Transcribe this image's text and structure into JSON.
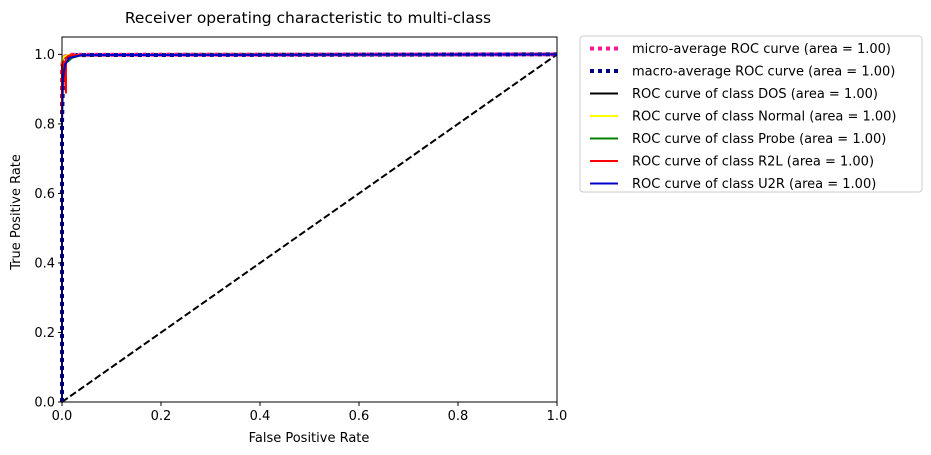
{
  "chart_data": {
    "type": "line",
    "title": "Receiver operating characteristic to multi-class",
    "xlabel": "False Positive Rate",
    "ylabel": "True Positive Rate",
    "xlim": [
      0.0,
      1.0
    ],
    "ylim": [
      0.0,
      1.05
    ],
    "xticks": [
      "0.0",
      "0.2",
      "0.4",
      "0.6",
      "0.8",
      "1.0"
    ],
    "yticks": [
      "0.0",
      "0.2",
      "0.4",
      "0.6",
      "0.8",
      "1.0"
    ],
    "xtick_values": [
      0.0,
      0.2,
      0.4,
      0.6,
      0.8,
      1.0
    ],
    "ytick_values": [
      0.0,
      0.2,
      0.4,
      0.6,
      0.8,
      1.0
    ],
    "legend_position": "outside-upper-right",
    "series": [
      {
        "name": "micro-average ROC curve (area = 1.00)",
        "color": "#ff1493",
        "style": "dotted",
        "x": [
          0.0,
          0.0,
          0.002,
          0.005,
          0.01,
          0.02,
          1.0
        ],
        "y": [
          0.0,
          0.96,
          0.985,
          0.993,
          0.997,
          0.999,
          1.0
        ]
      },
      {
        "name": "macro-average ROC curve (area = 1.00)",
        "color": "#000080",
        "style": "dotted",
        "x": [
          0.0,
          0.0,
          0.002,
          0.005,
          0.01,
          0.03,
          1.0
        ],
        "y": [
          0.0,
          0.8,
          0.93,
          0.97,
          0.99,
          0.998,
          1.0
        ]
      },
      {
        "name": "ROC curve of class DOS (area = 1.00)",
        "color": "#000000",
        "style": "solid",
        "x": [
          0.0,
          0.0,
          0.003,
          0.01,
          1.0
        ],
        "y": [
          0.0,
          0.97,
          0.99,
          0.998,
          1.0
        ]
      },
      {
        "name": "ROC curve of class Normal (area = 1.00)",
        "color": "#ffff00",
        "style": "solid",
        "x": [
          0.0,
          0.0,
          0.003,
          0.01,
          1.0
        ],
        "y": [
          0.0,
          0.98,
          0.992,
          0.998,
          1.0
        ]
      },
      {
        "name": "ROC curve of class Probe (area = 1.00)",
        "color": "#008000",
        "style": "solid",
        "x": [
          0.0,
          0.0,
          0.005,
          0.012,
          0.02,
          0.04,
          1.0
        ],
        "y": [
          0.0,
          0.95,
          0.975,
          0.98,
          0.99,
          0.998,
          1.0
        ]
      },
      {
        "name": "ROC curve of class R2L (area = 1.00)",
        "color": "#ff0000",
        "style": "solid",
        "x": [
          0.0,
          0.0,
          0.004,
          0.008,
          0.008,
          0.012,
          0.02,
          1.0
        ],
        "y": [
          0.0,
          0.97,
          0.98,
          0.89,
          0.99,
          0.995,
          0.998,
          1.0
        ]
      },
      {
        "name": "ROC curve of class U2R (area = 1.00)",
        "color": "#0000cd",
        "style": "solid",
        "x": [
          0.0,
          0.0,
          0.002,
          0.006,
          0.015,
          0.04,
          1.0
        ],
        "y": [
          0.0,
          0.8,
          0.93,
          0.97,
          0.99,
          0.998,
          1.0
        ]
      },
      {
        "name": "chance",
        "color": "#000000",
        "style": "dashed",
        "x": [
          0.0,
          1.0
        ],
        "y": [
          0.0,
          1.0
        ]
      }
    ]
  }
}
